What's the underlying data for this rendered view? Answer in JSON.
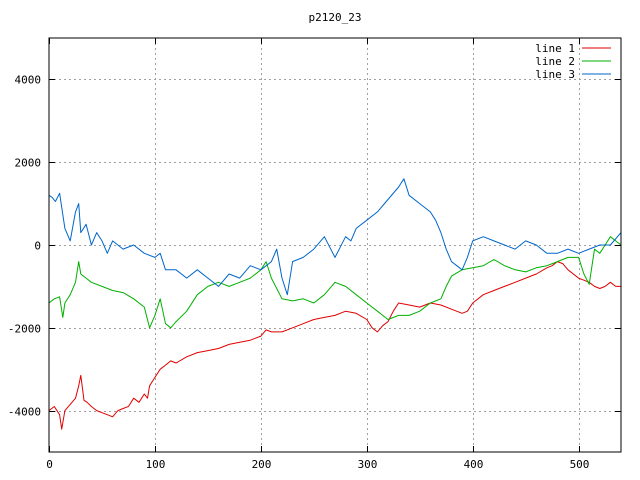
{
  "chart_data": {
    "type": "line",
    "title": "p2120_23",
    "xlabel": "",
    "ylabel": "",
    "xlim": [
      0,
      540
    ],
    "ylim": [
      -5000,
      5000
    ],
    "x_ticks": [
      0,
      100,
      200,
      300,
      400,
      500
    ],
    "y_ticks": [
      -4000,
      -2000,
      0,
      2000,
      4000
    ],
    "grid": true,
    "legend_position": "top-right",
    "series": [
      {
        "name": "line 1",
        "color": "#e00000",
        "x": [
          0,
          5,
          10,
          12,
          15,
          20,
          25,
          28,
          30,
          33,
          36,
          40,
          45,
          50,
          55,
          60,
          65,
          70,
          75,
          80,
          85,
          90,
          93,
          95,
          100,
          105,
          110,
          115,
          120,
          130,
          140,
          150,
          160,
          170,
          180,
          190,
          200,
          205,
          210,
          220,
          230,
          240,
          250,
          260,
          270,
          280,
          290,
          300,
          305,
          310,
          315,
          320,
          325,
          330,
          340,
          350,
          360,
          370,
          380,
          390,
          395,
          400,
          410,
          420,
          430,
          440,
          450,
          460,
          470,
          475,
          480,
          485,
          490,
          500,
          505,
          510,
          515,
          520,
          525,
          530,
          535,
          540
        ],
        "values": [
          -4000,
          -3900,
          -4100,
          -4450,
          -4000,
          -3850,
          -3700,
          -3400,
          -3150,
          -3750,
          -3800,
          -3900,
          -4000,
          -4050,
          -4100,
          -4150,
          -4000,
          -3950,
          -3900,
          -3700,
          -3800,
          -3600,
          -3700,
          -3400,
          -3200,
          -3000,
          -2900,
          -2800,
          -2850,
          -2700,
          -2600,
          -2550,
          -2500,
          -2400,
          -2350,
          -2300,
          -2200,
          -2050,
          -2100,
          -2100,
          -2000,
          -1900,
          -1800,
          -1750,
          -1700,
          -1600,
          -1650,
          -1800,
          -2000,
          -2100,
          -1950,
          -1850,
          -1600,
          -1400,
          -1450,
          -1500,
          -1400,
          -1450,
          -1550,
          -1650,
          -1600,
          -1400,
          -1200,
          -1100,
          -1000,
          -900,
          -800,
          -700,
          -550,
          -500,
          -400,
          -450,
          -600,
          -800,
          -850,
          -900,
          -1000,
          -1050,
          -1000,
          -900,
          -1000,
          -1000
        ]
      },
      {
        "name": "line 2",
        "color": "#00b000",
        "x": [
          0,
          5,
          10,
          13,
          15,
          20,
          25,
          28,
          30,
          35,
          40,
          50,
          60,
          70,
          80,
          90,
          95,
          100,
          105,
          110,
          115,
          120,
          130,
          140,
          150,
          160,
          170,
          180,
          190,
          200,
          205,
          210,
          220,
          230,
          240,
          250,
          260,
          270,
          280,
          290,
          300,
          310,
          320,
          330,
          340,
          350,
          360,
          370,
          375,
          380,
          390,
          400,
          410,
          420,
          430,
          440,
          450,
          460,
          470,
          480,
          490,
          500,
          505,
          510,
          515,
          520,
          525,
          530,
          535,
          540
        ],
        "values": [
          -1400,
          -1300,
          -1250,
          -1750,
          -1400,
          -1200,
          -900,
          -400,
          -700,
          -800,
          -900,
          -1000,
          -1100,
          -1150,
          -1300,
          -1500,
          -2000,
          -1700,
          -1300,
          -1900,
          -2000,
          -1850,
          -1600,
          -1200,
          -1000,
          -900,
          -1000,
          -900,
          -800,
          -600,
          -400,
          -800,
          -1300,
          -1350,
          -1300,
          -1400,
          -1200,
          -900,
          -1000,
          -1200,
          -1400,
          -1600,
          -1800,
          -1700,
          -1700,
          -1600,
          -1400,
          -1300,
          -1000,
          -750,
          -600,
          -550,
          -500,
          -350,
          -500,
          -600,
          -650,
          -550,
          -500,
          -400,
          -300,
          -300,
          -700,
          -950,
          -100,
          -200,
          0,
          200,
          100,
          0
        ]
      },
      {
        "name": "line 3",
        "color": "#0066cc",
        "x": [
          0,
          3,
          6,
          10,
          15,
          20,
          25,
          28,
          30,
          35,
          40,
          45,
          50,
          55,
          60,
          70,
          80,
          90,
          100,
          105,
          110,
          120,
          130,
          140,
          150,
          160,
          170,
          180,
          190,
          200,
          210,
          215,
          220,
          225,
          230,
          240,
          250,
          260,
          270,
          280,
          285,
          290,
          300,
          310,
          320,
          330,
          335,
          340,
          350,
          360,
          365,
          370,
          375,
          380,
          385,
          390,
          395,
          400,
          410,
          420,
          430,
          440,
          450,
          460,
          470,
          480,
          490,
          500,
          510,
          520,
          530,
          540
        ],
        "values": [
          1200,
          1150,
          1050,
          1250,
          400,
          100,
          800,
          1000,
          300,
          500,
          0,
          300,
          100,
          -200,
          100,
          -100,
          0,
          -200,
          -300,
          -200,
          -600,
          -600,
          -800,
          -600,
          -800,
          -1000,
          -700,
          -800,
          -500,
          -600,
          -400,
          -100,
          -800,
          -1200,
          -400,
          -300,
          -100,
          200,
          -300,
          200,
          100,
          400,
          600,
          800,
          1100,
          1400,
          1600,
          1200,
          1000,
          800,
          600,
          300,
          -100,
          -400,
          -500,
          -600,
          -300,
          100,
          200,
          100,
          0,
          -100,
          100,
          0,
          -200,
          -200,
          -100,
          -200,
          -100,
          0,
          0,
          300
        ]
      }
    ]
  }
}
